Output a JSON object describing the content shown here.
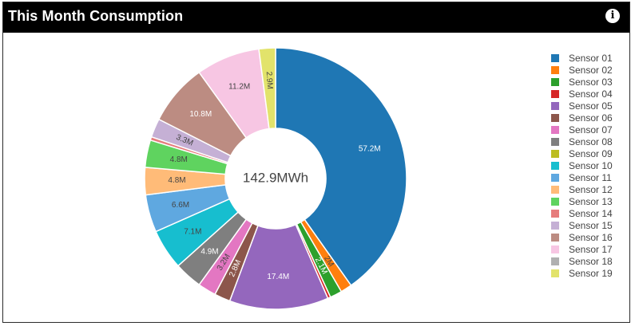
{
  "widget": {
    "title": "This Month Consumption",
    "info_icon": "info-circle-icon",
    "info_glyph": "i"
  },
  "chart_data": {
    "type": "pie",
    "variant": "donut",
    "center_label": "142.9MWh",
    "legend_position": "right",
    "series": [
      {
        "name": "Sensor 01",
        "value": 57.2,
        "label": "57.2M",
        "color": "#1f77b4"
      },
      {
        "name": "Sensor 02",
        "value": 2.0,
        "label": "2M",
        "color": "#ff7f0e"
      },
      {
        "name": "Sensor 03",
        "value": 2.1,
        "label": "2.1M",
        "color": "#2ca02c"
      },
      {
        "name": "Sensor 04",
        "value": 0.5,
        "label": "",
        "color": "#d62728"
      },
      {
        "name": "Sensor 05",
        "value": 17.4,
        "label": "17.4M",
        "color": "#9467bd"
      },
      {
        "name": "Sensor 06",
        "value": 2.8,
        "label": "2.8M",
        "color": "#8c564b"
      },
      {
        "name": "Sensor 07",
        "value": 3.2,
        "label": "3.2M",
        "color": "#e377c2"
      },
      {
        "name": "Sensor 08",
        "value": 4.9,
        "label": "4.9M",
        "color": "#7f7f7f"
      },
      {
        "name": "Sensor 09",
        "value": 0.0,
        "label": "",
        "color": "#bcbd22"
      },
      {
        "name": "Sensor 10",
        "value": 7.1,
        "label": "7.1M",
        "color": "#17becf"
      },
      {
        "name": "Sensor 11",
        "value": 6.6,
        "label": "6.6M",
        "color": "#5fa8e0"
      },
      {
        "name": "Sensor 12",
        "value": 4.8,
        "label": "4.8M",
        "color": "#ffbb78"
      },
      {
        "name": "Sensor 13",
        "value": 4.8,
        "label": "4.8M",
        "color": "#5fd35f"
      },
      {
        "name": "Sensor 14",
        "value": 0.6,
        "label": "",
        "color": "#e67c7c"
      },
      {
        "name": "Sensor 15",
        "value": 3.3,
        "label": "3.3M",
        "color": "#c5b0d5"
      },
      {
        "name": "Sensor 16",
        "value": 10.8,
        "label": "10.8M",
        "color": "#bc8c82"
      },
      {
        "name": "Sensor 17",
        "value": 11.2,
        "label": "11.2M",
        "color": "#f7c6e3"
      },
      {
        "name": "Sensor 18",
        "value": 0.0,
        "label": "",
        "color": "#b0b0b0"
      },
      {
        "name": "Sensor 19",
        "value": 2.9,
        "label": "2.9M",
        "color": "#e2e36b"
      }
    ]
  }
}
